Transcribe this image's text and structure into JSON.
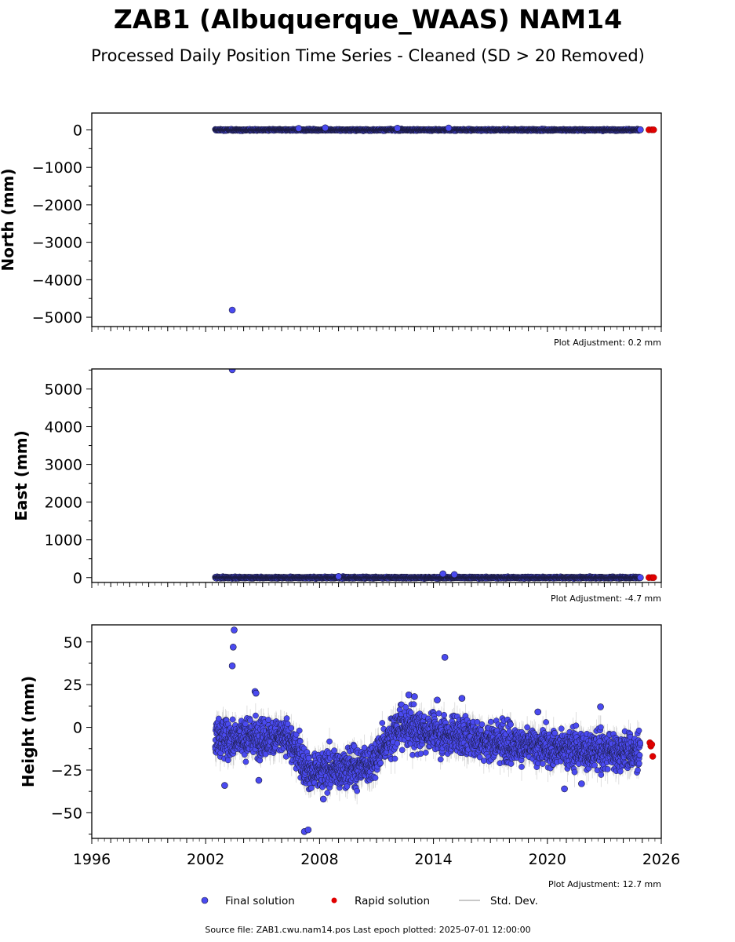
{
  "title": "ZAB1 (Albuquerque_WAAS) NAM14",
  "subtitle": "Processed Daily Position Time Series - Cleaned (SD > 20 Removed)",
  "footer": "Source file: ZAB1.cwu.nam14.pos  Last epoch plotted: 2025-07-01 12:00:00",
  "legend": {
    "final": "Final solution",
    "rapid": "Rapid solution",
    "std": "Std. Dev."
  },
  "colors": {
    "final": "#4a4af0",
    "final_edge": "#1a1a3a",
    "rapid": "#e00000",
    "std": "#b8b8b8"
  },
  "chart_data": [
    {
      "type": "scatter",
      "panel": "north",
      "ylabel": "North (mm)",
      "adjustment": "Plot Adjustment: 0.2 mm",
      "xlim": [
        1996,
        2026
      ],
      "ylim": [
        -5250,
        450
      ],
      "yticks": [
        0,
        -1000,
        -2000,
        -3000,
        -4000,
        -5000
      ],
      "yticklabels": [
        "0",
        "−1000",
        "−2000",
        "−3000",
        "−4000",
        "−5000"
      ],
      "trend": {
        "x0": 2002.5,
        "x1": 2024.9,
        "y0": 0,
        "y1": 0,
        "spread": 15
      },
      "outliers": [
        {
          "x": 2003.4,
          "y": -4810
        },
        {
          "x": 2006.9,
          "y": 40
        },
        {
          "x": 2008.3,
          "y": 55
        },
        {
          "x": 2012.1,
          "y": 45
        },
        {
          "x": 2014.8,
          "y": 50
        }
      ],
      "rapid": [
        {
          "x": 2025.35,
          "y": 3
        },
        {
          "x": 2025.5,
          "y": 3
        },
        {
          "x": 2025.6,
          "y": 3
        }
      ],
      "final_end": {
        "x": 2024.9,
        "y": 5
      }
    },
    {
      "type": "scatter",
      "panel": "east",
      "ylabel": "East (mm)",
      "adjustment": "Plot Adjustment: -4.7 mm",
      "xlim": [
        1996,
        2026
      ],
      "ylim": [
        -130,
        5530
      ],
      "yticks": [
        0,
        1000,
        2000,
        3000,
        4000,
        5000
      ],
      "yticklabels": [
        "0",
        "1000",
        "2000",
        "3000",
        "4000",
        "5000"
      ],
      "trend": {
        "x0": 2002.5,
        "x1": 2024.9,
        "y0": 0,
        "y1": 0,
        "spread": 15
      },
      "outliers": [
        {
          "x": 2003.4,
          "y": 5510
        },
        {
          "x": 2014.5,
          "y": 100
        },
        {
          "x": 2015.1,
          "y": 80
        },
        {
          "x": 2009.0,
          "y": 30
        }
      ],
      "rapid": [
        {
          "x": 2025.35,
          "y": 0
        },
        {
          "x": 2025.5,
          "y": 0
        },
        {
          "x": 2025.6,
          "y": 0
        }
      ],
      "final_end": {
        "x": 2024.9,
        "y": 0
      }
    },
    {
      "type": "scatter",
      "panel": "height",
      "ylabel": "Height (mm)",
      "adjustment": "Plot Adjustment: 12.7 mm",
      "xlabel": "",
      "xlim": [
        1996,
        2026
      ],
      "ylim": [
        -65,
        60
      ],
      "yticks": [
        50,
        25,
        0,
        -25,
        -50
      ],
      "yticklabels": [
        "50",
        "25",
        "0",
        "−25",
        "−50"
      ],
      "xticks": [
        1996,
        2002,
        2008,
        2014,
        2020,
        2026
      ],
      "xticklabels": [
        "1996",
        "2002",
        "2008",
        "2014",
        "2020",
        "2026"
      ],
      "trend_segments": [
        {
          "x0": 2002.5,
          "x1": 2006.3,
          "y0": -6,
          "y1": -6
        },
        {
          "x0": 2006.3,
          "x1": 2007.6,
          "y0": -6,
          "y1": -28
        },
        {
          "x0": 2007.6,
          "x1": 2010.6,
          "y0": -26,
          "y1": -22
        },
        {
          "x0": 2010.6,
          "x1": 2012.3,
          "y0": -22,
          "y1": 2
        },
        {
          "x0": 2012.3,
          "x1": 2015.0,
          "y0": 0,
          "y1": -5
        },
        {
          "x0": 2015.0,
          "x1": 2019.0,
          "y0": -4,
          "y1": -11
        },
        {
          "x0": 2019.0,
          "x1": 2024.9,
          "y0": -11,
          "y1": -15
        }
      ],
      "spread": 9,
      "outliers": [
        {
          "x": 2003.5,
          "y": 57
        },
        {
          "x": 2003.45,
          "y": 47
        },
        {
          "x": 2003.4,
          "y": 36
        },
        {
          "x": 2004.6,
          "y": 21
        },
        {
          "x": 2004.65,
          "y": 20
        },
        {
          "x": 2014.6,
          "y": 41
        },
        {
          "x": 2007.2,
          "y": -61
        },
        {
          "x": 2007.4,
          "y": -60
        },
        {
          "x": 2012.7,
          "y": 19
        },
        {
          "x": 2013.0,
          "y": 18
        },
        {
          "x": 2015.5,
          "y": 17
        },
        {
          "x": 2003.0,
          "y": -34
        },
        {
          "x": 2004.8,
          "y": -31
        },
        {
          "x": 2020.9,
          "y": -36
        },
        {
          "x": 2021.8,
          "y": -33
        },
        {
          "x": 2022.8,
          "y": 12
        },
        {
          "x": 2019.5,
          "y": 9
        },
        {
          "x": 2014.2,
          "y": 16
        },
        {
          "x": 2008.2,
          "y": -42
        }
      ],
      "rapid": [
        {
          "x": 2025.4,
          "y": -9
        },
        {
          "x": 2025.45,
          "y": -11
        },
        {
          "x": 2025.5,
          "y": -10
        },
        {
          "x": 2025.55,
          "y": -17
        }
      ]
    }
  ]
}
